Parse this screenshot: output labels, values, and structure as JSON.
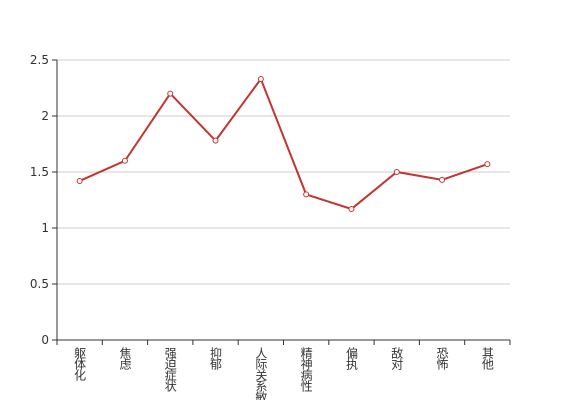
{
  "chart_data": {
    "type": "line",
    "categories": [
      "躯体化",
      "焦虑",
      "强迫症状",
      "抑郁",
      "人际关系敏感",
      "精神病性",
      "偏执",
      "敌对",
      "恐怖",
      "其他"
    ],
    "series": [
      {
        "color": "#c23531",
        "values": [
          1.42,
          1.6,
          2.2,
          1.78,
          2.33,
          1.3,
          1.17,
          1.5,
          1.43,
          1.57
        ]
      }
    ],
    "ylim": [
      0,
      2.5
    ],
    "yticks": [
      0,
      0.5,
      1,
      1.5,
      2,
      2.5
    ],
    "grid": true
  }
}
